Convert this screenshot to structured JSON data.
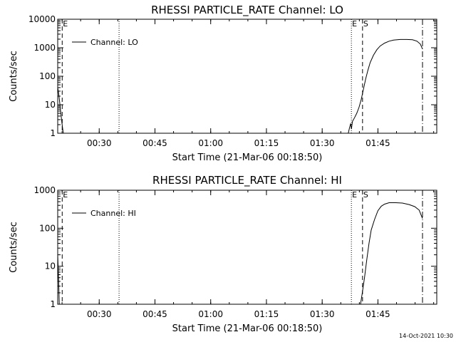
{
  "footer": {
    "timestamp": "14-Oct-2021 10:30"
  },
  "chart_data": [
    {
      "type": "line",
      "title": "RHESSI PARTICLE_RATE Channel: LO",
      "xlabel": "Start Time (21-Mar-06 00:18:50)",
      "ylabel": "Counts/sec",
      "xlim": [
        0.3139,
        2.0139
      ],
      "ylim": [
        1,
        10000
      ],
      "y_scale": "log",
      "x_ticks": [
        {
          "x": 0.5,
          "label": "00:30"
        },
        {
          "x": 0.75,
          "label": "00:45"
        },
        {
          "x": 1.0,
          "label": "01:00"
        },
        {
          "x": 1.25,
          "label": "01:15"
        },
        {
          "x": 1.5,
          "label": "01:30"
        },
        {
          "x": 1.75,
          "label": "01:45"
        }
      ],
      "y_ticks": [
        {
          "y": 1,
          "label": "1"
        },
        {
          "y": 10,
          "label": "10"
        },
        {
          "y": 100,
          "label": "100"
        },
        {
          "y": 1000,
          "label": "1000"
        },
        {
          "y": 10000,
          "label": "10000"
        }
      ],
      "legend": {
        "label": "Channel: LO",
        "position": "top-left"
      },
      "markers": [
        {
          "x": 0.334,
          "style": "dash",
          "label": "E"
        },
        {
          "x": 0.589,
          "style": "dot",
          "label": ""
        },
        {
          "x": 1.631,
          "style": "dot",
          "label": "E"
        },
        {
          "x": 1.681,
          "style": "dash",
          "label": "S"
        },
        {
          "x": 1.95,
          "style": "dashdot",
          "label": ""
        }
      ],
      "series": [
        {
          "name": "Channel: LO",
          "points": [
            [
              0.3139,
              40
            ],
            [
              0.318,
              25
            ],
            [
              0.323,
              12
            ],
            [
              0.328,
              5
            ],
            [
              0.333,
              2.2
            ],
            [
              0.337,
              1.3
            ],
            [
              0.339,
              1
            ],
            [
              1.617,
              1
            ],
            [
              1.622,
              1.5
            ],
            [
              1.628,
              2.2
            ],
            [
              1.631,
              1.4
            ],
            [
              1.636,
              2.6
            ],
            [
              1.645,
              3.5
            ],
            [
              1.655,
              5
            ],
            [
              1.665,
              8
            ],
            [
              1.675,
              15
            ],
            [
              1.685,
              35
            ],
            [
              1.695,
              80
            ],
            [
              1.705,
              160
            ],
            [
              1.715,
              300
            ],
            [
              1.73,
              550
            ],
            [
              1.745,
              850
            ],
            [
              1.76,
              1150
            ],
            [
              1.78,
              1450
            ],
            [
              1.8,
              1700
            ],
            [
              1.82,
              1850
            ],
            [
              1.85,
              1950
            ],
            [
              1.88,
              1950
            ],
            [
              1.905,
              1900
            ],
            [
              1.925,
              1700
            ],
            [
              1.94,
              1350
            ],
            [
              1.95,
              900
            ]
          ]
        }
      ]
    },
    {
      "type": "line",
      "title": "RHESSI PARTICLE_RATE Channel: HI",
      "xlabel": "Start Time (21-Mar-06 00:18:50)",
      "ylabel": "Counts/sec",
      "xlim": [
        0.3139,
        2.0139
      ],
      "ylim": [
        1,
        1000
      ],
      "y_scale": "log",
      "x_ticks": [
        {
          "x": 0.5,
          "label": "00:30"
        },
        {
          "x": 0.75,
          "label": "00:45"
        },
        {
          "x": 1.0,
          "label": "01:00"
        },
        {
          "x": 1.25,
          "label": "01:15"
        },
        {
          "x": 1.5,
          "label": "01:30"
        },
        {
          "x": 1.75,
          "label": "01:45"
        }
      ],
      "y_ticks": [
        {
          "y": 1,
          "label": "1"
        },
        {
          "y": 10,
          "label": "10"
        },
        {
          "y": 100,
          "label": "100"
        },
        {
          "y": 1000,
          "label": "1000"
        }
      ],
      "legend": {
        "label": "Channel: HI",
        "position": "top-left"
      },
      "markers": [
        {
          "x": 0.334,
          "style": "dash",
          "label": "E"
        },
        {
          "x": 0.589,
          "style": "dot",
          "label": ""
        },
        {
          "x": 1.631,
          "style": "dot",
          "label": "E"
        },
        {
          "x": 1.681,
          "style": "dash",
          "label": "S"
        },
        {
          "x": 1.95,
          "style": "dashdot",
          "label": ""
        }
      ],
      "series": [
        {
          "name": "Channel: HI",
          "points": [
            [
              0.3139,
              20
            ],
            [
              0.318,
              4
            ],
            [
              0.321,
              1
            ],
            [
              1.672,
              1
            ],
            [
              1.68,
              2
            ],
            [
              1.69,
              5
            ],
            [
              1.7,
              15
            ],
            [
              1.71,
              40
            ],
            [
              1.72,
              90
            ],
            [
              1.735,
              170
            ],
            [
              1.75,
              290
            ],
            [
              1.765,
              380
            ],
            [
              1.78,
              430
            ],
            [
              1.8,
              470
            ],
            [
              1.83,
              470
            ],
            [
              1.86,
              460
            ],
            [
              1.89,
              420
            ],
            [
              1.915,
              370
            ],
            [
              1.935,
              300
            ],
            [
              1.95,
              180
            ]
          ]
        }
      ]
    }
  ]
}
